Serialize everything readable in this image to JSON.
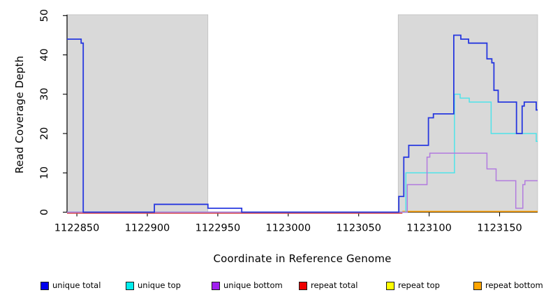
{
  "figure_title": "read coverage depth step plot",
  "chart_data": {
    "type": "line",
    "step_mode": "post",
    "title": "",
    "xlabel": "Coordinate in Reference Genome",
    "ylabel": "Read Coverage Depth",
    "xlim": [
      1122843,
      1123177
    ],
    "ylim": [
      0,
      50
    ],
    "grid": "off",
    "legend_position": "bottom",
    "x_ticks": [
      1122850,
      1122900,
      1122950,
      1123000,
      1123050,
      1123100,
      1123150
    ],
    "y_ticks": [
      0,
      10,
      20,
      30,
      40,
      50
    ],
    "shaded_regions": [
      {
        "from": 1122843,
        "to": 1122943,
        "color": "#D9D9D9"
      },
      {
        "from": 1123078,
        "to": 1123177,
        "color": "#D9D9D9"
      }
    ],
    "series": [
      {
        "name": "unique total",
        "color": "#2738DF",
        "width": 1.8,
        "dy": 0,
        "end": 1123177,
        "points": [
          [
            1122843,
            44
          ],
          [
            1122853,
            43
          ],
          [
            1122854.5,
            0
          ],
          [
            1122905,
            2
          ],
          [
            1122943,
            1
          ],
          [
            1122967,
            0
          ],
          [
            1123078.5,
            4
          ],
          [
            1123082,
            14
          ],
          [
            1123085.5,
            17
          ],
          [
            1123099.5,
            24
          ],
          [
            1123103,
            25
          ],
          [
            1123117.5,
            45
          ],
          [
            1123122.5,
            44
          ],
          [
            1123128,
            43
          ],
          [
            1123141,
            39
          ],
          [
            1123144.5,
            38
          ],
          [
            1123146,
            31
          ],
          [
            1123149,
            28
          ],
          [
            1123162,
            20
          ],
          [
            1123166,
            27
          ],
          [
            1123167.5,
            28
          ],
          [
            1123176,
            26
          ]
        ]
      },
      {
        "name": "unique top",
        "color": "#4FE3E9",
        "width": 1.5,
        "dy": 0,
        "end": 1123177,
        "points": [
          [
            1122843,
            0
          ],
          [
            1123083.5,
            10
          ],
          [
            1123118,
            30
          ],
          [
            1123122,
            29
          ],
          [
            1123128.5,
            28
          ],
          [
            1123144,
            20
          ],
          [
            1123176,
            18
          ]
        ]
      },
      {
        "name": "unique bottom",
        "color": "#B27BDF",
        "width": 1.5,
        "dy": 0,
        "end": 1123177,
        "points": [
          [
            1122843,
            0
          ],
          [
            1123084.5,
            7
          ],
          [
            1123098.5,
            14
          ],
          [
            1123100.5,
            15
          ],
          [
            1123141,
            11
          ],
          [
            1123147.5,
            8
          ],
          [
            1123161.5,
            1
          ],
          [
            1123166.5,
            7
          ],
          [
            1123168,
            8
          ]
        ]
      },
      {
        "name": "repeat total",
        "color": "#E04040",
        "width": 1.4,
        "dy": 1.5,
        "end": 1123081,
        "points": [
          [
            1122843,
            0
          ]
        ]
      },
      {
        "name": "repeat top",
        "color": "#FFFF00",
        "width": 1.4,
        "dy": -1,
        "end": 1123177,
        "points": [
          [
            1123081,
            0
          ]
        ]
      },
      {
        "name": "repeat bottom",
        "color": "#FFA110",
        "width": 1.8,
        "dy": -1,
        "end": 1123177,
        "points": [
          [
            1123081,
            0
          ]
        ]
      }
    ],
    "draw_order": [
      "repeat total",
      "repeat top",
      "repeat bottom",
      "unique top",
      "unique bottom",
      "unique total"
    ]
  },
  "legend": {
    "items": [
      {
        "label": "unique total",
        "color": "#0000EE"
      },
      {
        "label": "unique top",
        "color": "#00EEEE"
      },
      {
        "label": "unique bottom",
        "color": "#A020F0"
      },
      {
        "label": "repeat total",
        "color": "#EE0000"
      },
      {
        "label": "repeat top",
        "color": "#FFFF00"
      },
      {
        "label": "repeat bottom",
        "color": "#FFA500"
      }
    ]
  }
}
